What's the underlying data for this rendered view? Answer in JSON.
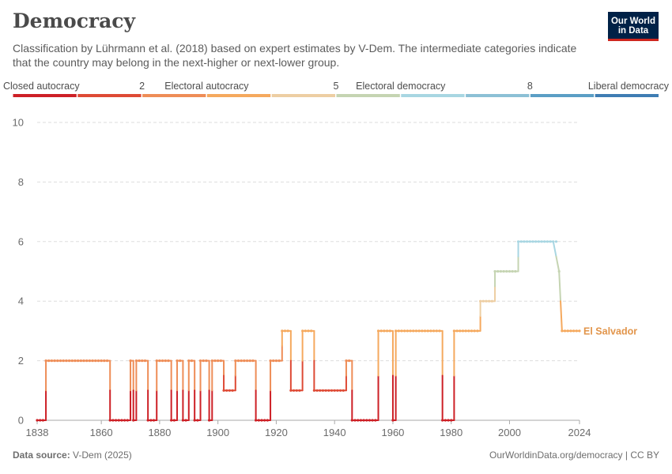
{
  "header": {
    "title": "Democracy",
    "subtitle": "Classification by Lührmann et al. (2018) based on expert estimates by V-Dem. The intermediate categories indicate that the country may belong in the next-higher or next-lower group.",
    "logo_line1": "Our World",
    "logo_line2": "in Data"
  },
  "footer": {
    "source_label": "Data source:",
    "source_value": "V-Dem (2025)",
    "link": "OurWorldinData.org/democracy",
    "license": "| CC BY"
  },
  "colors": {
    "scale": [
      "#cd2026",
      "#de4a35",
      "#ee8d57",
      "#f5a95e",
      "#edcea3",
      "#c5d4b2",
      "#a8d6e2",
      "#8cc0d5",
      "#5b9ec5",
      "#3f7db3"
    ],
    "grid": "#dddddd",
    "axis": "#aaaaaa",
    "label": "#e2954b"
  },
  "legend": {
    "labels": [
      {
        "text": "Closed autocracy",
        "segment": 0,
        "align": "start"
      },
      {
        "text": "2",
        "segment": 2,
        "align": "middle"
      },
      {
        "text": "Electoral autocracy",
        "segment": 3,
        "align": "middle"
      },
      {
        "text": "5",
        "segment": 5,
        "align": "middle"
      },
      {
        "text": "Electoral democracy",
        "segment": 6,
        "align": "middle"
      },
      {
        "text": "8",
        "segment": 8,
        "align": "middle"
      },
      {
        "text": "Liberal democracy",
        "segment": 9,
        "align": "end"
      }
    ]
  },
  "chart_data": {
    "type": "line",
    "title": "Democracy",
    "series": [
      {
        "name": "El Salvador",
        "segments": [
          [
            1838,
            0
          ],
          [
            1841,
            0
          ],
          [
            1841,
            2
          ],
          [
            1863,
            2
          ],
          [
            1863,
            0
          ],
          [
            1870,
            0
          ],
          [
            1870,
            2
          ],
          [
            1871,
            2
          ],
          [
            1871,
            0
          ],
          [
            1872,
            0
          ],
          [
            1872,
            2
          ],
          [
            1876,
            2
          ],
          [
            1876,
            0
          ],
          [
            1879,
            0
          ],
          [
            1879,
            2
          ],
          [
            1884,
            2
          ],
          [
            1884,
            0
          ],
          [
            1886,
            0
          ],
          [
            1886,
            2
          ],
          [
            1888,
            2
          ],
          [
            1888,
            0
          ],
          [
            1890,
            0
          ],
          [
            1890,
            2
          ],
          [
            1892,
            2
          ],
          [
            1892,
            0
          ],
          [
            1894,
            0
          ],
          [
            1894,
            2
          ],
          [
            1897,
            2
          ],
          [
            1897,
            0
          ],
          [
            1898,
            0
          ],
          [
            1898,
            2
          ],
          [
            1902,
            2
          ],
          [
            1902,
            1
          ],
          [
            1906,
            1
          ],
          [
            1906,
            2
          ],
          [
            1913,
            2
          ],
          [
            1913,
            0
          ],
          [
            1918,
            0
          ],
          [
            1918,
            2
          ],
          [
            1922,
            2
          ],
          [
            1922,
            3
          ],
          [
            1925,
            3
          ],
          [
            1925,
            1
          ],
          [
            1929,
            1
          ],
          [
            1929,
            3
          ],
          [
            1933,
            3
          ],
          [
            1933,
            1
          ],
          [
            1944,
            1
          ],
          [
            1944,
            2
          ],
          [
            1946,
            2
          ],
          [
            1946,
            0
          ],
          [
            1955,
            0
          ],
          [
            1955,
            3
          ],
          [
            1960,
            3
          ],
          [
            1960,
            0
          ],
          [
            1961,
            0
          ],
          [
            1961,
            3
          ],
          [
            1977,
            3
          ],
          [
            1977,
            0
          ],
          [
            1981,
            0
          ],
          [
            1981,
            3
          ],
          [
            1990,
            3
          ],
          [
            1990,
            4
          ],
          [
            1995,
            4
          ],
          [
            1995,
            5
          ],
          [
            2003,
            5
          ],
          [
            2003,
            6
          ],
          [
            2015,
            6
          ],
          [
            2017,
            5
          ],
          [
            2018,
            3
          ],
          [
            2024,
            3
          ]
        ]
      }
    ],
    "xlabel": "",
    "ylabel": "",
    "x_ticks": [
      1838,
      1860,
      1880,
      1900,
      1920,
      1940,
      1960,
      1980,
      2000,
      2024
    ],
    "y_ticks": [
      0,
      2,
      4,
      6,
      8,
      10
    ],
    "xlim": [
      1838,
      2024
    ],
    "ylim": [
      0,
      10
    ],
    "end_label": "El Salvador"
  }
}
